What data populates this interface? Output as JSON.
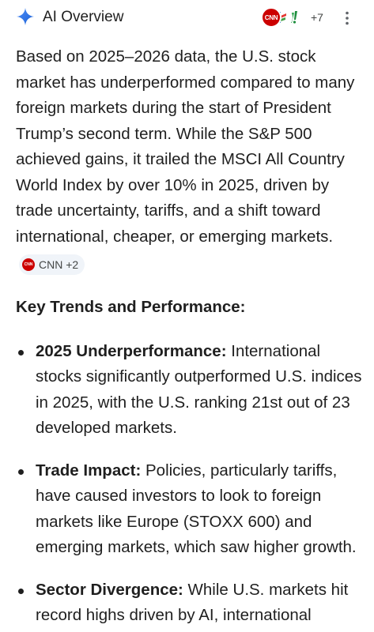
{
  "header": {
    "title": "AI Overview",
    "more_sources": "+7",
    "sources": [
      {
        "name": "CNN",
        "icon": "cnn-logo-icon",
        "color": "#cc0000"
      },
      {
        "name": "",
        "icon": "source-logo-icon"
      },
      {
        "name": "",
        "icon": "yahoo-logo-icon"
      }
    ]
  },
  "overview": {
    "text": "Based on 2025–2026 data, the U.S. stock market has underperformed compared to many foreign markets during the start of President Trump’s second term. While the S&P 500 achieved gains, it trailed the MSCI All Country World Index by over 10% in 2025, driven by trade uncertainty, tariffs, and a shift toward international, cheaper, or emerging markets.",
    "citation_chip": "CNN +2"
  },
  "section": {
    "heading": "Key Trends and Performance:"
  },
  "bullets": [
    {
      "title": "2025 Underperformance:",
      "text": " International stocks significantly outperformed U.S. indices in 2025, with the U.S. ranking 21st out of 23 developed markets."
    },
    {
      "title": "Trade Impact:",
      "text": " Policies, particularly tariffs, have caused investors to look to foreign markets like Europe (STOXX 600) and emerging markets, which saw higher growth."
    },
    {
      "title": "Sector Divergence:",
      "text": " While U.S. markets hit record highs driven by AI, international"
    }
  ],
  "colors": {
    "text": "#1f1f1f",
    "secondary_text": "#444746",
    "chip_bg": "#f0f4f9",
    "cnn_red": "#cc0000",
    "sparkle_blue": "#1a73e8"
  }
}
